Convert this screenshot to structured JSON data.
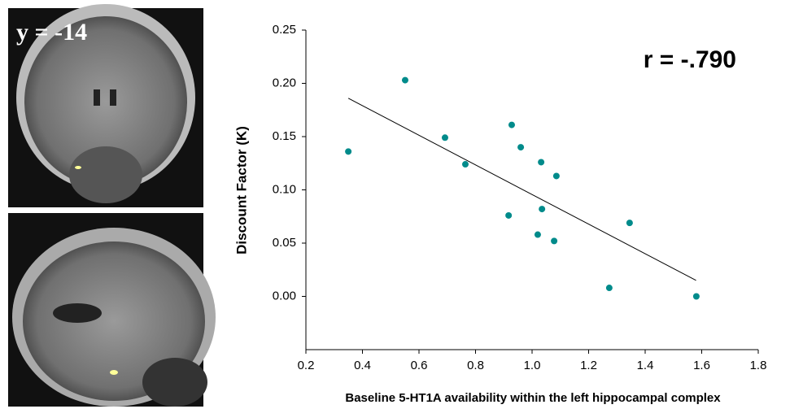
{
  "panel_label": "y = -14",
  "chart_data": {
    "type": "scatter",
    "annotation": "r = -.790",
    "x_label": "Baseline 5-HT1A availability within the left hippocampal complex",
    "y_label": "Discount Factor (K)",
    "color": "#008b8b",
    "x": [
      0.35,
      0.551,
      0.692,
      0.764,
      0.928,
      0.96,
      0.917,
      1.032,
      1.086,
      1.035,
      1.02,
      1.078,
      1.345,
      1.273,
      1.581
    ],
    "values": [
      0.136,
      0.203,
      0.149,
      0.124,
      0.161,
      0.14,
      0.076,
      0.126,
      0.113,
      0.082,
      0.058,
      0.052,
      0.069,
      0.008,
      0.0
    ],
    "trend_line": {
      "x": [
        0.35,
        1.58
      ],
      "y": [
        0.186,
        0.015
      ]
    },
    "xlim": [
      0.2,
      1.8
    ],
    "xticks": [
      0.2,
      0.4,
      0.6,
      0.8,
      {
        "value": 1,
        "label": "1.0"
      },
      1.2,
      1.4,
      1.6,
      1.8
    ],
    "ylim": [
      -0.05,
      0.25
    ],
    "yticks": [
      {
        "value": 0,
        "label": "0.00"
      },
      {
        "value": 0.05,
        "label": "0.05"
      },
      {
        "value": 0.1,
        "label": "0.10"
      },
      {
        "value": 0.15,
        "label": "0.15"
      },
      {
        "value": 0.2,
        "label": "0.20"
      },
      {
        "value": 0.25,
        "label": "0.25"
      }
    ],
    "grid": false
  }
}
